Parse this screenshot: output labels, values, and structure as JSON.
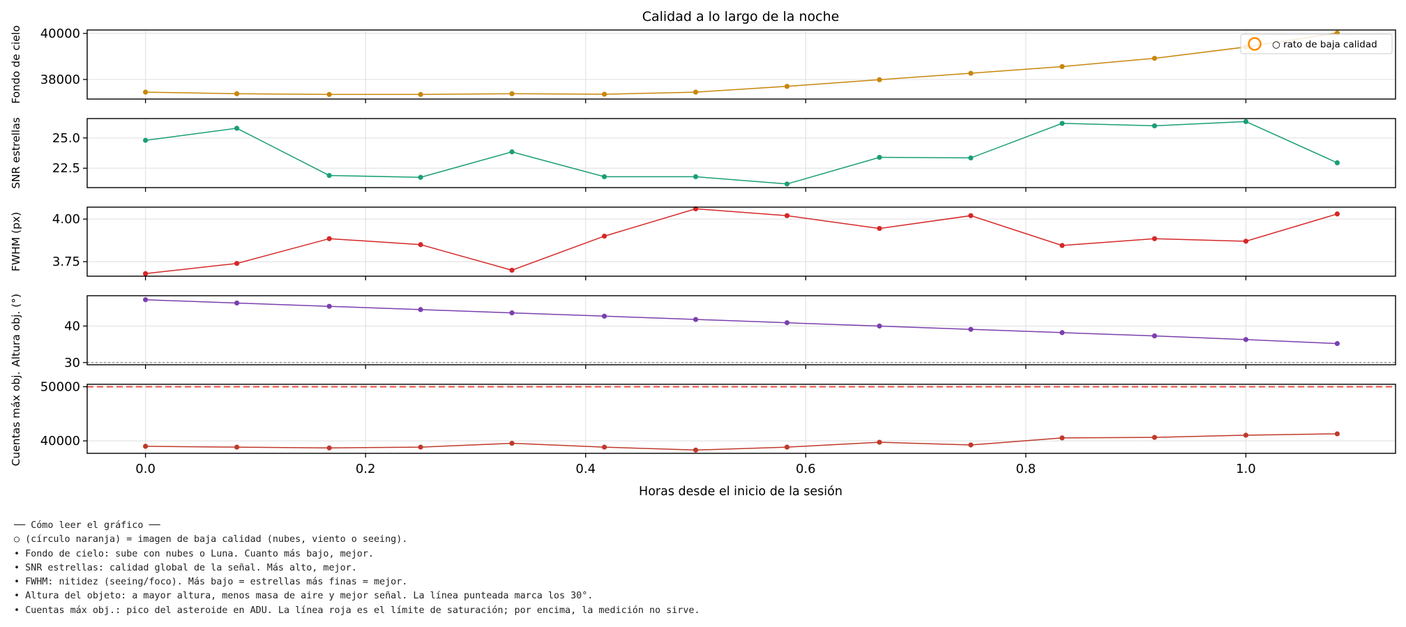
{
  "chart_data": {
    "type": "line",
    "title": "Calidad a lo largo de la noche",
    "xlabel": "Horas desde el inicio de la sesión",
    "x": [
      0.0,
      0.083,
      0.167,
      0.25,
      0.333,
      0.417,
      0.5,
      0.583,
      0.667,
      0.75,
      0.833,
      0.917,
      1.0,
      1.083
    ],
    "xlim": [
      -0.053,
      1.136
    ],
    "xticks": [
      0.0,
      0.2,
      0.4,
      0.6,
      0.8,
      1.0
    ],
    "xtick_labels": [
      "0.0",
      "0.2",
      "0.4",
      "0.6",
      "0.8",
      "1.0"
    ],
    "grid": true,
    "legend": {
      "position": "top-right",
      "marker_label": "○ rato de baja calidad",
      "marker_color": "#ff8c00"
    },
    "panels": [
      {
        "ylabel": "Fondo de cielo",
        "color": "#c8860a",
        "ylim": [
          37150,
          40150
        ],
        "yticks": [
          38000,
          40000
        ],
        "ytick_labels": [
          "38000",
          "40000"
        ],
        "values": [
          37450,
          37380,
          37350,
          37350,
          37380,
          37360,
          37450,
          37700,
          37990,
          38270,
          38560,
          38920,
          39410,
          40020
        ]
      },
      {
        "ylabel": "SNR estrellas",
        "color": "#1a9e77",
        "ylim": [
          20.9,
          26.6
        ],
        "yticks": [
          22.5,
          25.0
        ],
        "ytick_labels": [
          "22.5",
          "25.0"
        ],
        "values": [
          24.8,
          25.8,
          21.9,
          21.75,
          23.85,
          21.8,
          21.8,
          21.2,
          23.4,
          23.35,
          26.2,
          26.0,
          26.35,
          22.95
        ]
      },
      {
        "ylabel": "FWHM (px)",
        "color": "#d62728",
        "ylim": [
          3.665,
          4.07
        ],
        "yticks": [
          3.75,
          4.0
        ],
        "ytick_labels": [
          "3.75",
          "4.00"
        ],
        "values": [
          3.68,
          3.74,
          3.885,
          3.85,
          3.7,
          3.9,
          4.06,
          4.02,
          3.945,
          4.02,
          3.845,
          3.885,
          3.87,
          4.03
        ]
      },
      {
        "ylabel": "Altura obj. (°)",
        "color": "#7b3fae",
        "ylim": [
          29.4,
          48.3
        ],
        "yticks": [
          30,
          40
        ],
        "ytick_labels": [
          "30",
          "40"
        ],
        "values": [
          47.2,
          46.3,
          45.4,
          44.5,
          43.6,
          42.7,
          41.8,
          40.9,
          40.0,
          39.1,
          38.2,
          37.3,
          36.3,
          35.2
        ],
        "reference_line": {
          "y": 30,
          "style": "dotted",
          "color": "#888888"
        }
      },
      {
        "ylabel": "Cuentas máx obj.",
        "color": "#c0392b",
        "ylim": [
          37700,
          50450
        ],
        "yticks": [
          40000,
          50000
        ],
        "ytick_labels": [
          "40000",
          "50000"
        ],
        "values": [
          39000,
          38850,
          38700,
          38850,
          39550,
          38850,
          38300,
          38850,
          39750,
          39250,
          40550,
          40650,
          41050,
          41300
        ],
        "reference_line": {
          "y": 50000,
          "style": "dashed",
          "color": "#e74c3c"
        }
      }
    ]
  },
  "notes": [
    "── Cómo leer el gráfico ──",
    "○ (círculo naranja) = imagen de baja calidad (nubes, viento o seeing).",
    "• Fondo de cielo: sube con nubes o Luna. Cuanto más bajo, mejor.",
    "• SNR estrellas: calidad global de la señal. Más alto, mejor.",
    "• FWHM: nitidez (seeing/foco). Más bajo = estrellas más finas = mejor.",
    "• Altura del objeto: a mayor altura, menos masa de aire y mejor señal. La línea punteada marca los 30°.",
    "• Cuentas máx obj.: pico del asteroide en ADU. La línea roja es el límite de saturación; por encima, la medición no sirve."
  ]
}
